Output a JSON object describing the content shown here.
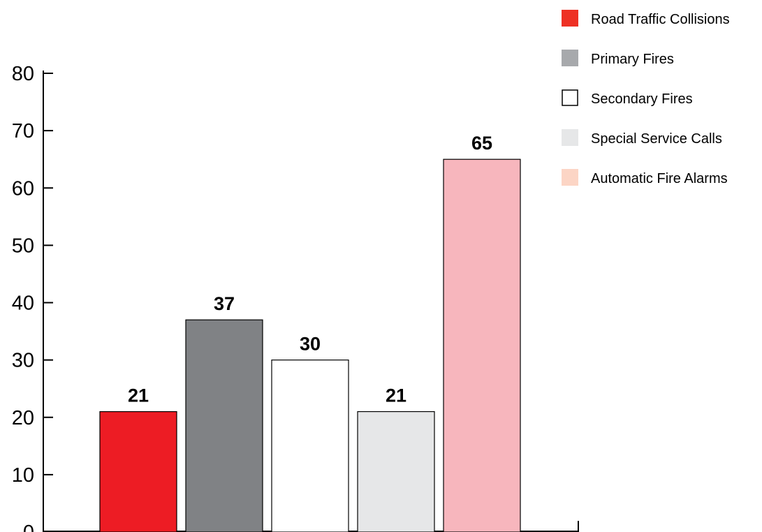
{
  "chart_data": {
    "type": "bar",
    "title": "",
    "xlabel": "",
    "ylabel": "",
    "categories": [
      "Road Traffic Collisions",
      "Primary Fires",
      "Secondary Fires",
      "Special Service Calls",
      "Automatic Fire Alarms"
    ],
    "values": [
      21,
      37,
      30,
      21,
      65
    ],
    "data_labels": [
      "21",
      "37",
      "30",
      "21",
      "65"
    ],
    "colors": [
      "#ed1c24",
      "#808285",
      "#ffffff",
      "#e6e7e8",
      "#f7b6bd"
    ],
    "ylim": [
      0,
      80
    ],
    "yticks": [
      0,
      10,
      20,
      30,
      40,
      50,
      60,
      70,
      80
    ],
    "ytick_labels": [
      "0",
      "10",
      "20",
      "30",
      "40",
      "50",
      "60",
      "70",
      "80"
    ],
    "grid": false,
    "legend": {
      "position": "top-right",
      "entries": [
        {
          "label": "Road Traffic Collisions",
          "color": "#ee3124",
          "outlined": false
        },
        {
          "label": "Primary Fires",
          "color": "#a7a9ac",
          "outlined": false
        },
        {
          "label": "Secondary Fires",
          "color": "#ffffff",
          "outlined": true
        },
        {
          "label": "Special Service Calls",
          "color": "#e6e7e8",
          "outlined": false
        },
        {
          "label": "Automatic Fire Alarms",
          "color": "#fcd5c5",
          "outlined": false
        }
      ]
    }
  }
}
